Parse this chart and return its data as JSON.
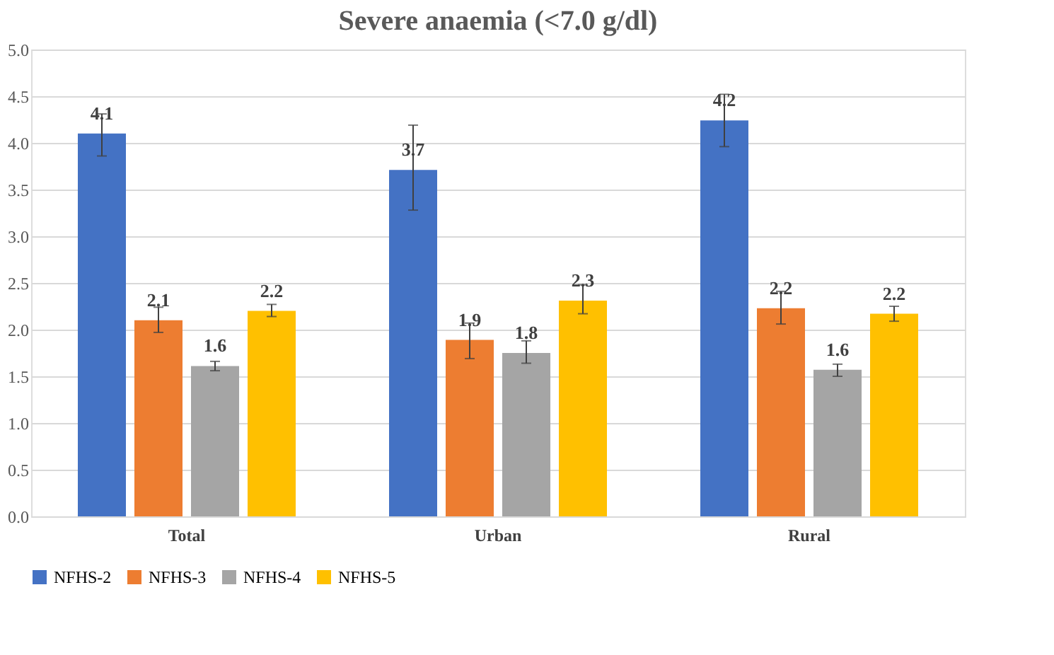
{
  "chart_data": {
    "type": "bar",
    "title": "Severe anaemia (<7.0 g/dl)",
    "categories": [
      "Total",
      "Urban",
      "Rural"
    ],
    "series": [
      {
        "name": "NFHS-2",
        "color": "#4472c4",
        "values": [
          4.1,
          3.71,
          4.24
        ],
        "errors": [
          [
            3.86,
            4.31
          ],
          [
            3.28,
            4.19
          ],
          [
            3.96,
            4.52
          ]
        ],
        "value_labels": [
          "4.1",
          "3.7",
          "4.2"
        ]
      },
      {
        "name": "NFHS-3",
        "color": "#ed7d31",
        "values": [
          2.1,
          1.89,
          2.23
        ],
        "errors": [
          [
            1.97,
            2.24
          ],
          [
            1.69,
            2.07
          ],
          [
            2.06,
            2.41
          ]
        ],
        "value_labels": [
          "2.1",
          "1.9",
          "2.2"
        ]
      },
      {
        "name": "NFHS-4",
        "color": "#a5a5a5",
        "values": [
          1.61,
          1.75,
          1.57
        ],
        "errors": [
          [
            1.56,
            1.66
          ],
          [
            1.64,
            1.88
          ],
          [
            1.5,
            1.63
          ]
        ],
        "value_labels": [
          "1.6",
          "1.8",
          "1.6"
        ]
      },
      {
        "name": "NFHS-5",
        "color": "#ffc000",
        "values": [
          2.2,
          2.31,
          2.17
        ],
        "errors": [
          [
            2.14,
            2.27
          ],
          [
            2.17,
            2.48
          ],
          [
            2.09,
            2.25
          ]
        ],
        "value_labels": [
          "2.2",
          "2.3",
          "2.2"
        ]
      }
    ],
    "ylim": [
      0,
      5
    ],
    "yticks": [
      {
        "value": 0,
        "label": "0.0"
      },
      0.5,
      {
        "value": 1,
        "label": "1.0"
      },
      1.5,
      {
        "value": 2,
        "label": "2.0"
      },
      2.5,
      {
        "value": 3,
        "label": "3.0"
      },
      3.5,
      {
        "value": 4,
        "label": "4.0"
      },
      4.5,
      {
        "value": 5,
        "label": "5.0"
      }
    ],
    "grid": "y",
    "legend": "bottom"
  }
}
